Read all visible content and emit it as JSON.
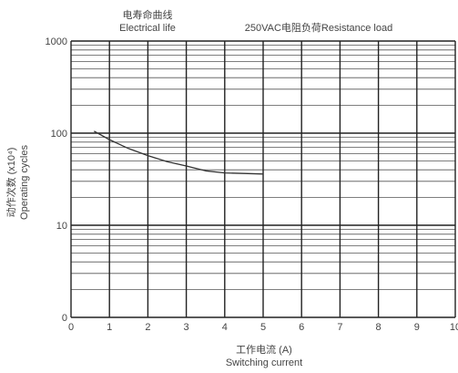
{
  "chart_data": {
    "type": "line",
    "title_cn": "电寿命曲线",
    "title_en": "Electrical life",
    "condition": "250VAC电阻负荷Resistance load",
    "xlabel_cn": "工作电流 (A)",
    "xlabel_en": "Switching current",
    "ylabel_cn": "动作次数 (x10⁴)",
    "ylabel_en": "Operating cycles",
    "x_scale": "linear",
    "y_scale": "log",
    "xlim": [
      0,
      10
    ],
    "ylim_decades": [
      1,
      1000
    ],
    "x_ticks": [
      "0",
      "1",
      "2",
      "3",
      "4",
      "5",
      "6",
      "7",
      "8",
      "9",
      "10"
    ],
    "y_ticks": [
      {
        "value": 1,
        "label": "0"
      },
      {
        "value": 10,
        "label": "10"
      },
      {
        "value": 100,
        "label": "100"
      },
      {
        "value": 1000,
        "label": "1000"
      }
    ],
    "grid": true,
    "series": [
      {
        "x": [
          0.6,
          1.0,
          1.5,
          2.0,
          2.5,
          3.0,
          3.5,
          4.0,
          4.5,
          5.0
        ],
        "y": [
          105,
          85,
          68,
          57,
          49,
          44,
          39,
          37,
          36.5,
          36
        ]
      }
    ],
    "color": "#333333"
  }
}
